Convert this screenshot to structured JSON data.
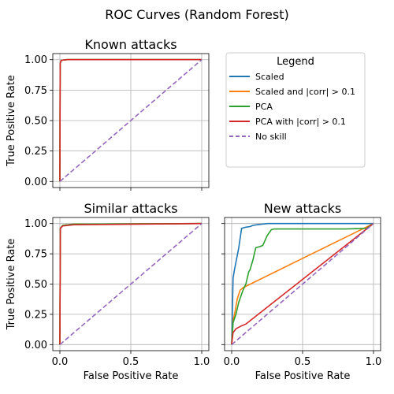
{
  "suptitle": "ROC Curves (Random Forest)",
  "legend": {
    "title": "Legend",
    "entries": [
      {
        "label": "Scaled",
        "color": "#1f77b4",
        "dash": false
      },
      {
        "label": "Scaled and |corr| > 0.1",
        "color": "#ff7f0e",
        "dash": false
      },
      {
        "label": "PCA",
        "color": "#2ca02c",
        "dash": false
      },
      {
        "label": "PCA with |corr| > 0.1",
        "color": "#d62728",
        "dash": false
      },
      {
        "label": "No skill",
        "color": "#9467bd",
        "dash": true
      }
    ]
  },
  "chart_data": [
    {
      "type": "line",
      "title": "Known attacks",
      "xlabel": "",
      "ylabel": "True Positive Rate",
      "xlim": [
        -0.05,
        1.05
      ],
      "ylim": [
        -0.05,
        1.05
      ],
      "xticks": [
        0.0,
        0.5,
        1.0
      ],
      "xticklabels": [],
      "yticks": [
        0.0,
        0.25,
        0.5,
        0.75,
        1.0
      ],
      "yticklabels": [
        "0.00",
        "0.25",
        "0.50",
        "0.75",
        "1.00"
      ],
      "grid": true,
      "series": [
        {
          "name": "Scaled",
          "color": "#1f77b4",
          "x": [
            0,
            0.002,
            0.01,
            0.05,
            1.0
          ],
          "y": [
            0,
            0.97,
            0.995,
            1.0,
            1.0
          ]
        },
        {
          "name": "Scaled and |corr| > 0.1",
          "color": "#ff7f0e",
          "x": [
            0,
            0.002,
            0.01,
            0.05,
            1.0
          ],
          "y": [
            0,
            0.97,
            0.995,
            1.0,
            1.0
          ]
        },
        {
          "name": "PCA",
          "color": "#2ca02c",
          "x": [
            0,
            0.002,
            0.01,
            0.05,
            1.0
          ],
          "y": [
            0,
            0.97,
            0.995,
            1.0,
            1.0
          ]
        },
        {
          "name": "PCA with |corr| > 0.1",
          "color": "#d62728",
          "x": [
            0,
            0.002,
            0.01,
            0.05,
            1.0
          ],
          "y": [
            0,
            0.97,
            0.995,
            1.0,
            1.0
          ]
        },
        {
          "name": "No skill",
          "color": "#9467bd",
          "dash": true,
          "x": [
            0,
            1
          ],
          "y": [
            0,
            1
          ]
        }
      ]
    },
    {
      "type": "line",
      "title": "Similar attacks",
      "xlabel": "False Positive Rate",
      "ylabel": "True Positive Rate",
      "xlim": [
        -0.05,
        1.05
      ],
      "ylim": [
        -0.05,
        1.05
      ],
      "xticks": [
        0.0,
        0.5,
        1.0
      ],
      "xticklabels": [
        "0.0",
        "0.5",
        "1.0"
      ],
      "yticks": [
        0.0,
        0.25,
        0.5,
        0.75,
        1.0
      ],
      "yticklabels": [
        "0.00",
        "0.25",
        "0.50",
        "0.75",
        "1.00"
      ],
      "grid": true,
      "series": [
        {
          "name": "Scaled",
          "color": "#1f77b4",
          "x": [
            0,
            0.003,
            0.02,
            0.1,
            1.0
          ],
          "y": [
            0,
            0.96,
            0.985,
            0.995,
            1.0
          ]
        },
        {
          "name": "Scaled and |corr| > 0.1",
          "color": "#ff7f0e",
          "x": [
            0,
            0.003,
            0.02,
            0.1,
            1.0
          ],
          "y": [
            0,
            0.96,
            0.985,
            0.995,
            1.0
          ]
        },
        {
          "name": "PCA",
          "color": "#2ca02c",
          "x": [
            0,
            0.003,
            0.02,
            0.1,
            1.0
          ],
          "y": [
            0,
            0.96,
            0.985,
            0.995,
            1.0
          ]
        },
        {
          "name": "PCA with |corr| > 0.1",
          "color": "#d62728",
          "x": [
            0,
            0.003,
            0.02,
            0.1,
            1.0
          ],
          "y": [
            0,
            0.96,
            0.98,
            0.99,
            1.0
          ]
        },
        {
          "name": "No skill",
          "color": "#9467bd",
          "dash": true,
          "x": [
            0,
            1
          ],
          "y": [
            0,
            1
          ]
        }
      ]
    },
    {
      "type": "line",
      "title": "New attacks",
      "xlabel": "False Positive Rate",
      "ylabel": "",
      "xlim": [
        -0.05,
        1.05
      ],
      "ylim": [
        -0.05,
        1.05
      ],
      "xticks": [
        0.0,
        0.5,
        1.0
      ],
      "xticklabels": [
        "0.0",
        "0.5",
        "1.0"
      ],
      "yticks": [
        0.0,
        0.25,
        0.5,
        0.75,
        1.0
      ],
      "yticklabels": [],
      "grid": true,
      "series": [
        {
          "name": "Scaled",
          "color": "#1f77b4",
          "x": [
            0,
            0.01,
            0.02,
            0.03,
            0.05,
            0.06,
            0.07,
            0.1,
            0.13,
            0.15,
            0.18,
            0.25,
            0.5,
            1.0
          ],
          "y": [
            0,
            0.55,
            0.62,
            0.68,
            0.8,
            0.88,
            0.96,
            0.97,
            0.975,
            0.985,
            0.99,
            1.0,
            1.0,
            1.0
          ]
        },
        {
          "name": "Scaled and |corr| > 0.1",
          "color": "#ff7f0e",
          "x": [
            0,
            0.01,
            0.02,
            0.04,
            0.06,
            0.08,
            1.0
          ],
          "y": [
            0,
            0.2,
            0.25,
            0.38,
            0.45,
            0.47,
            1.0
          ]
        },
        {
          "name": "PCA",
          "color": "#2ca02c",
          "x": [
            0,
            0.01,
            0.03,
            0.05,
            0.08,
            0.1,
            0.12,
            0.13,
            0.15,
            0.17,
            0.2,
            0.22,
            0.25,
            0.28,
            0.3,
            0.4,
            0.6,
            0.8,
            0.95,
            1.0
          ],
          "y": [
            0,
            0.18,
            0.25,
            0.35,
            0.45,
            0.5,
            0.6,
            0.62,
            0.7,
            0.8,
            0.81,
            0.82,
            0.9,
            0.95,
            0.955,
            0.955,
            0.955,
            0.955,
            0.96,
            1.0
          ]
        },
        {
          "name": "PCA with |corr| > 0.1",
          "color": "#d62728",
          "x": [
            0,
            0.01,
            0.03,
            0.06,
            0.1,
            1.0
          ],
          "y": [
            0,
            0.1,
            0.13,
            0.15,
            0.17,
            1.0
          ]
        },
        {
          "name": "No skill",
          "color": "#9467bd",
          "dash": true,
          "x": [
            0,
            1
          ],
          "y": [
            0,
            1
          ]
        }
      ]
    }
  ]
}
